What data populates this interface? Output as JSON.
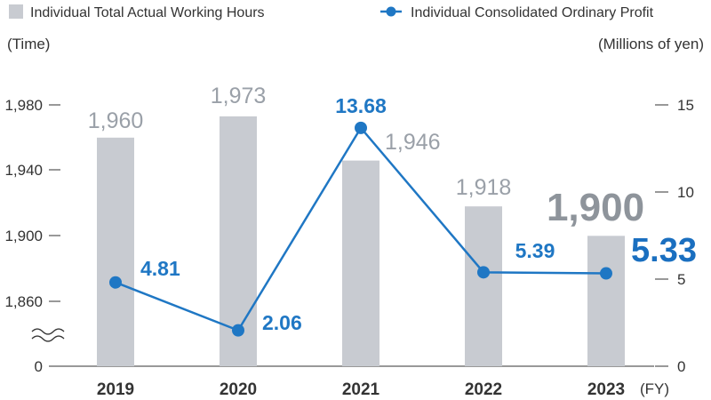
{
  "legend": {
    "bars_label": "Individual Total Actual Working Hours",
    "line_label": "Individual Consolidated Ordinary Profit"
  },
  "axes": {
    "left_unit": "(Time)",
    "right_unit": "(Millions of yen)",
    "x_unit": "(FY)",
    "left_ticks": [
      "1,980",
      "1,940",
      "1,900",
      "1,860",
      "0"
    ],
    "right_ticks": [
      "15",
      "10",
      "5",
      "0"
    ]
  },
  "colors": {
    "bar": "#c8cbd1",
    "line": "#1f77c4",
    "bar_label": "#9aa0a8",
    "line_label": "#1f77c4"
  },
  "chart_data": {
    "type": "bar",
    "categories": [
      "2019",
      "2020",
      "2021",
      "2022",
      "2023"
    ],
    "series": [
      {
        "name": "Individual Total Actual Working Hours",
        "type": "bar",
        "axis": "left",
        "values": [
          1960,
          1973,
          1946,
          1918,
          1900
        ],
        "labels": [
          "1,960",
          "1,973",
          "1,946",
          "1,918",
          "1,900"
        ]
      },
      {
        "name": "Individual Consolidated Ordinary Profit",
        "type": "line",
        "axis": "right",
        "values": [
          4.81,
          2.06,
          13.68,
          5.39,
          5.33
        ],
        "labels": [
          "4.81",
          "2.06",
          "13.68",
          "5.39",
          "5.33"
        ]
      }
    ],
    "left_axis": {
      "ticks": [
        1860,
        1900,
        1940,
        1980
      ],
      "broken_below": 1860
    },
    "right_axis": {
      "ylim": [
        0,
        15
      ],
      "ticks": [
        0,
        5,
        10,
        15
      ]
    },
    "highlight_category": "2023",
    "grid": false,
    "legend_position": "top"
  }
}
